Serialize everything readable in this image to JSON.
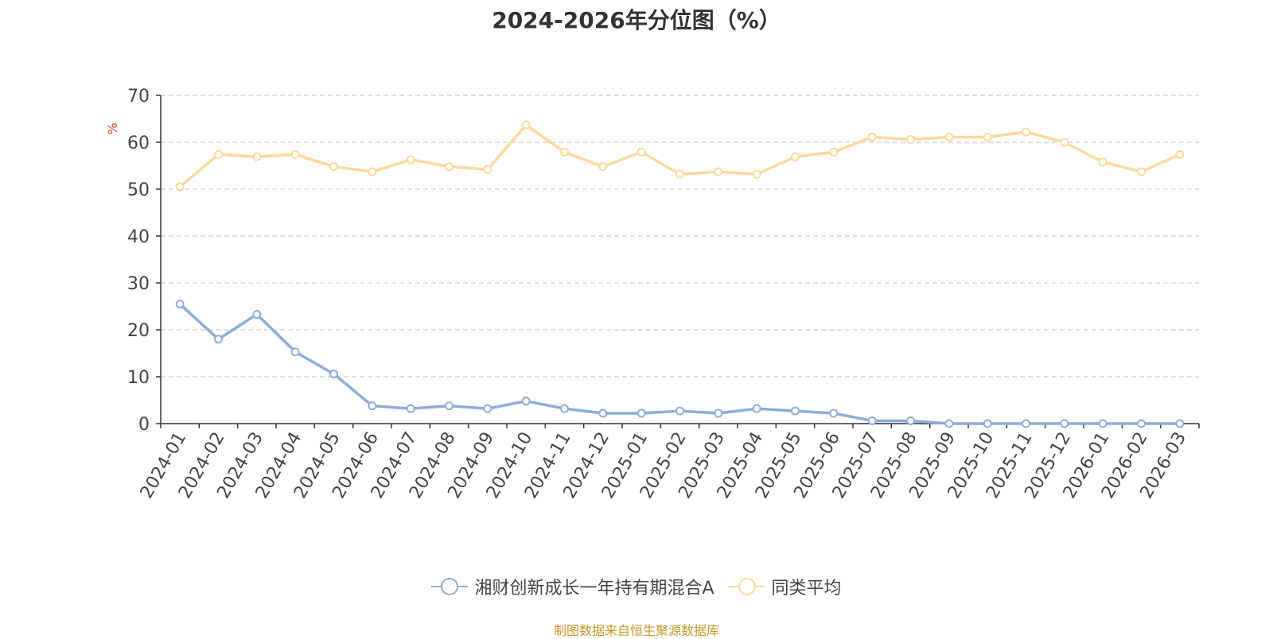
{
  "title": "2024-2026年分位图（%）",
  "source": "制图数据来自恒生聚源数据库",
  "chart_data": {
    "type": "line",
    "ylabel": "%",
    "ylim": [
      0,
      70
    ],
    "yticks": [
      0,
      10,
      20,
      30,
      40,
      50,
      60,
      70
    ],
    "grid": true,
    "legend_position": "bottom",
    "categories": [
      "2024-01",
      "2024-02",
      "2024-03",
      "2024-04",
      "2024-05",
      "2024-06",
      "2024-07",
      "2024-08",
      "2024-09",
      "2024-10",
      "2024-11",
      "2024-12",
      "2025-01",
      "2025-02",
      "2025-03",
      "2025-04",
      "2025-05",
      "2025-06",
      "2025-07",
      "2025-08",
      "2025-09",
      "2025-10",
      "2025-11",
      "2025-12",
      "2026-01",
      "2026-02",
      "2026-03"
    ],
    "series": [
      {
        "name": "湘财创新成长一年持有期混合A",
        "color": "#8eacd8",
        "values": [
          25.5,
          18.0,
          23.3,
          15.3,
          10.6,
          3.8,
          3.2,
          3.8,
          3.2,
          4.8,
          3.2,
          2.2,
          2.2,
          2.7,
          2.2,
          3.2,
          2.7,
          2.2,
          0.6,
          0.6,
          0.0,
          0.0,
          0.0,
          0.0,
          0.0,
          0.0,
          0.0
        ]
      },
      {
        "name": "同类平均",
        "color": "#fbd99b",
        "values": [
          50.5,
          57.4,
          56.9,
          57.4,
          54.8,
          53.7,
          56.3,
          54.8,
          54.2,
          63.7,
          57.9,
          54.8,
          57.9,
          53.2,
          53.7,
          53.2,
          56.9,
          57.9,
          61.1,
          60.6,
          61.1,
          61.1,
          62.2,
          60.0,
          55.8,
          53.7,
          57.4
        ]
      }
    ]
  }
}
